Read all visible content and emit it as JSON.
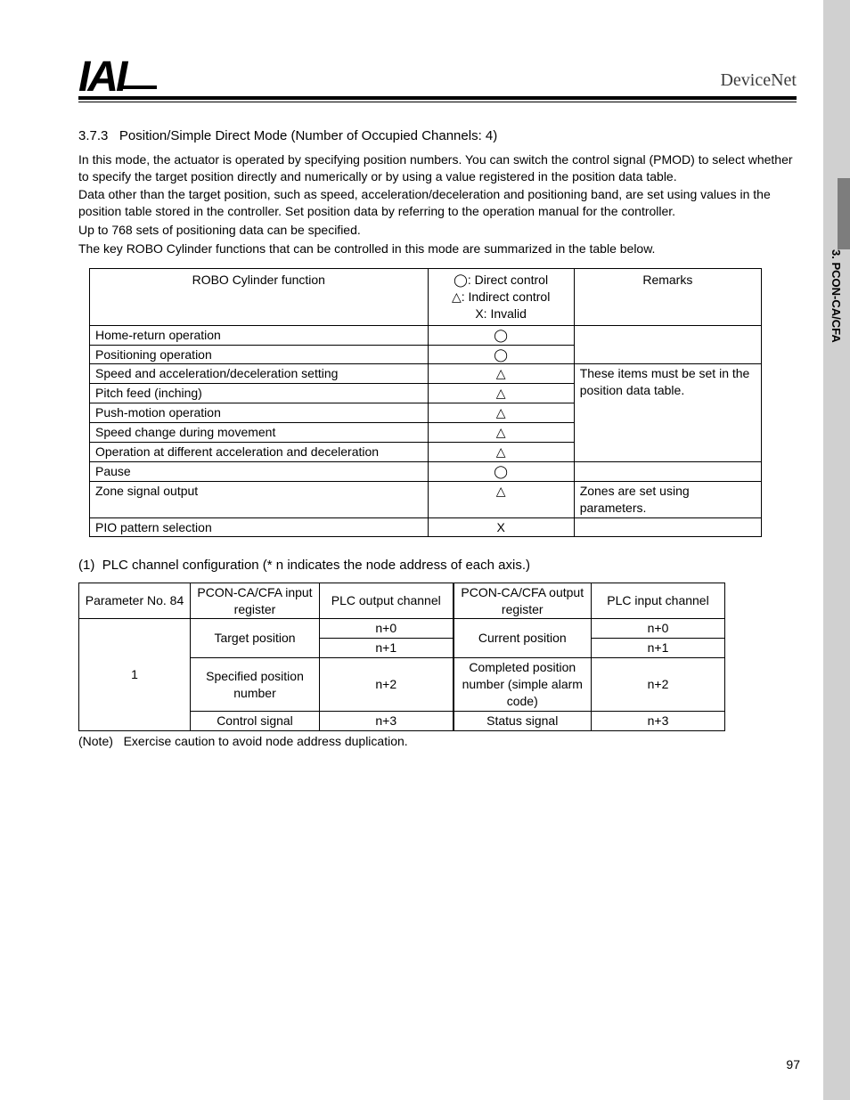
{
  "header": {
    "logo_text": "IAI",
    "brand": "DeviceNet"
  },
  "side_tab": "3. PCON-CA/CFA",
  "section": {
    "number": "3.7.3",
    "title": "Position/Simple Direct Mode (Number of Occupied Channels: 4)"
  },
  "paragraphs": [
    "In this mode, the actuator is operated by specifying position numbers. You can switch the control signal (PMOD) to select whether to specify the target position directly and numerically or by using a value registered in the position data table.",
    "Data other than the target position, such as speed, acceleration/deceleration and positioning band, are set using values in the position table stored in the controller. Set position data by referring to the operation manual for the controller.",
    "Up to 768 sets of positioning data can be specified.",
    "The key ROBO Cylinder functions that can be controlled in this mode are summarized in the table below."
  ],
  "symbols": {
    "direct": "◯",
    "indirect": "△",
    "invalid": "X"
  },
  "tbl1": {
    "head_func": "ROBO Cylinder function",
    "head_sym_lines": [
      "◯: Direct control",
      "△: Indirect control",
      "X: Invalid"
    ],
    "head_rem": "Remarks",
    "rows": [
      {
        "f": "Home-return operation",
        "s": "◯"
      },
      {
        "f": "Positioning operation",
        "s": "◯"
      },
      {
        "f": "Speed and acceleration/deceleration setting",
        "s": "△"
      },
      {
        "f": "Pitch feed (inching)",
        "s": "△"
      },
      {
        "f": "Push-motion operation",
        "s": "△"
      },
      {
        "f": "Speed change during movement",
        "s": "△"
      },
      {
        "f": "Operation at different acceleration and deceleration",
        "s": "△"
      },
      {
        "f": "Pause",
        "s": "◯"
      },
      {
        "f": "Zone signal output",
        "s": "△"
      },
      {
        "f": "PIO pattern selection",
        "s": "X"
      }
    ],
    "remark_group": "These items must be set in the position data table.",
    "remark_zone": "Zones are set using parameters."
  },
  "sub": {
    "num": "(1)",
    "title": "PLC channel configuration (* n indicates the node address of each axis.)"
  },
  "tbl2": {
    "headers": {
      "a": "Parameter No. 84",
      "b": "PCON-CA/CFA input register",
      "c": "PLC output channel",
      "d": "PCON-CA/CFA output register",
      "e": "PLC input channel"
    },
    "param": "1",
    "rows": [
      {
        "b": "Target position",
        "c": "n+0",
        "d": "Current position",
        "e": "n+0",
        "b_span": 2,
        "d_span": 2
      },
      {
        "c": "n+1",
        "e": "n+1"
      },
      {
        "b": "Specified position number",
        "c": "n+2",
        "d": "Completed position number (simple alarm code)",
        "e": "n+2"
      },
      {
        "b": "Control signal",
        "c": "n+3",
        "d": "Status signal",
        "e": "n+3"
      }
    ]
  },
  "note": {
    "label": "(Note)",
    "text": "Exercise caution to avoid node address duplication."
  },
  "page_number": "97"
}
